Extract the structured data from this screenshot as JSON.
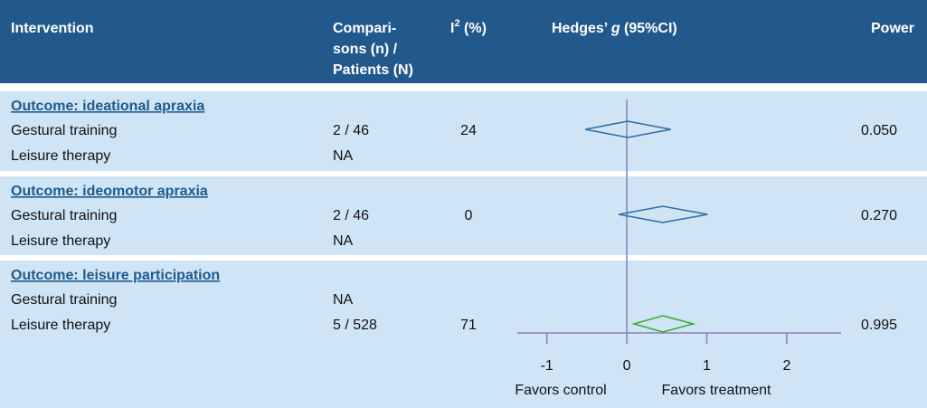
{
  "header": {
    "intervention": "Intervention",
    "comparisons": [
      "Compari-",
      "sons (n) /",
      "Patients (N)"
    ],
    "i2": {
      "base": "I",
      "sup": "2",
      "rest": " (%)"
    },
    "hedges": {
      "pre": "Hedges’ ",
      "g": "g",
      "post": " (95%CI)"
    },
    "power": "Power"
  },
  "sections": [
    {
      "title": "Outcome: ideational apraxia",
      "rows": [
        {
          "intervention": "Gestural training",
          "comparisons": "2 / 46",
          "i2": 24,
          "g": 0.01,
          "ci": [
            -0.52,
            0.55
          ],
          "power": "0.050",
          "color": "#2e6da4"
        },
        {
          "intervention": "Leisure therapy",
          "comparisons": "NA"
        }
      ]
    },
    {
      "title": "Outcome: ideomotor apraxia",
      "rows": [
        {
          "intervention": "Gestural training",
          "comparisons": "2 / 46",
          "i2": 0,
          "g": 0.45,
          "ci": [
            -0.1,
            1.01
          ],
          "power": "0.270",
          "color": "#2e6da4"
        },
        {
          "intervention": "Leisure therapy",
          "comparisons": "NA"
        }
      ]
    },
    {
      "title": "Outcome: leisure participation",
      "rows": [
        {
          "intervention": "Gestural training",
          "comparisons": "NA"
        },
        {
          "intervention": "Leisure therapy",
          "comparisons": "5 / 528",
          "i2": 71,
          "g": 0.45,
          "ci": [
            0.09,
            0.83
          ],
          "power": "0.995",
          "color": "#3aaa35"
        }
      ]
    }
  ],
  "forest": {
    "type": "forest",
    "xlim": [
      -1.37,
      2.68
    ],
    "xticks": [
      -1,
      0,
      1,
      2
    ],
    "left_label": "Favors control",
    "right_label": "Favors treatment"
  }
}
